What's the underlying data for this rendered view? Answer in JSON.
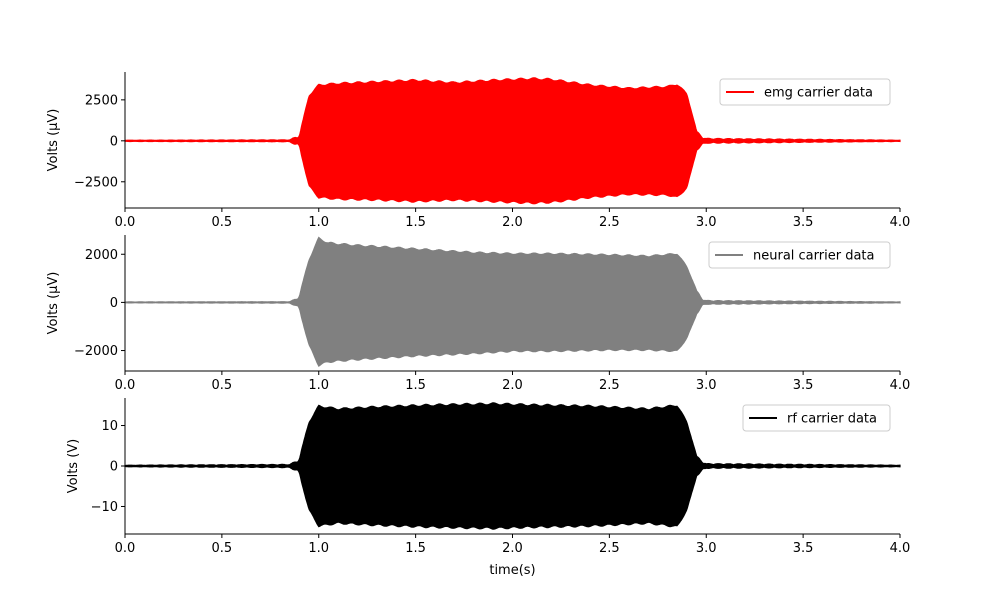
{
  "chart_data": [
    {
      "type": "line",
      "title": "",
      "xlabel": "",
      "ylabel": "Volts (μV)",
      "xlim": [
        0.0,
        4.0
      ],
      "ylim": [
        -4100,
        4200
      ],
      "xticks": [
        0.0,
        0.5,
        1.0,
        1.5,
        2.0,
        2.5,
        3.0,
        3.5,
        4.0
      ],
      "xtick_labels": [
        "0.0",
        "0.5",
        "1.0",
        "1.5",
        "2.0",
        "2.5",
        "3.0",
        "3.5",
        "4.0"
      ],
      "yticks": [
        -2500,
        0,
        2500
      ],
      "ytick_labels": [
        "−2500",
        "0",
        "2500"
      ],
      "legend_position": "top-right",
      "series": [
        {
          "name": "emg carrier data",
          "color": "#ff0000",
          "envelope": {
            "t": [
              0.0,
              0.85,
              0.88,
              0.9,
              0.95,
              1.0,
              1.1,
              1.3,
              1.5,
              1.7,
              1.9,
              2.1,
              2.2,
              2.4,
              2.6,
              2.8,
              2.85,
              2.9,
              2.95,
              2.98,
              3.0,
              4.0
            ],
            "upper": [
              40,
              60,
              250,
              350,
              2800,
              3450,
              3550,
              3650,
              3750,
              3600,
              3750,
              3850,
              3800,
              3450,
              3250,
              3350,
              3500,
              2900,
              600,
              250,
              150,
              40
            ],
            "lower": [
              -40,
              -60,
              -250,
              -350,
              -2800,
              -3500,
              -3600,
              -3650,
              -3750,
              -3650,
              -3750,
              -3850,
              -3800,
              -3500,
              -3300,
              -3350,
              -3500,
              -2900,
              -600,
              -250,
              -150,
              -40
            ]
          }
        }
      ]
    },
    {
      "type": "line",
      "title": "",
      "xlabel": "",
      "ylabel": "Volts (μV)",
      "xlim": [
        0.0,
        4.0
      ],
      "ylim": [
        -2850,
        2800
      ],
      "xticks": [
        0.0,
        0.5,
        1.0,
        1.5,
        2.0,
        2.5,
        3.0,
        3.5,
        4.0
      ],
      "xtick_labels": [
        "0.0",
        "0.5",
        "1.0",
        "1.5",
        "2.0",
        "2.5",
        "3.0",
        "3.5",
        "4.0"
      ],
      "yticks": [
        -2000,
        0,
        2000
      ],
      "ytick_labels": [
        "−2000",
        "0",
        "2000"
      ],
      "legend_position": "top-right",
      "series": [
        {
          "name": "neural carrier data",
          "color": "#808080",
          "envelope": {
            "t": [
              0.0,
              0.85,
              0.88,
              0.9,
              0.95,
              1.0,
              1.05,
              1.2,
              1.5,
              1.8,
              2.0,
              2.2,
              2.5,
              2.7,
              2.85,
              2.9,
              2.95,
              2.98,
              3.0,
              4.0
            ],
            "upper": [
              20,
              30,
              150,
              300,
              1800,
              2700,
              2500,
              2400,
              2250,
              2100,
              2050,
              2050,
              2000,
              1950,
              2050,
              1500,
              500,
              150,
              80,
              20
            ],
            "lower": [
              -20,
              -30,
              -150,
              -300,
              -1800,
              -2650,
              -2500,
              -2400,
              -2250,
              -2150,
              -2050,
              -2050,
              -2000,
              -2000,
              -2050,
              -1500,
              -500,
              -150,
              -80,
              -20
            ]
          }
        }
      ]
    },
    {
      "type": "line",
      "title": "",
      "xlabel": "time(s)",
      "ylabel": "Volts (V)",
      "xlim": [
        0.0,
        4.0
      ],
      "ylim": [
        -16.8,
        16.8
      ],
      "xticks": [
        0.0,
        0.5,
        1.0,
        1.5,
        2.0,
        2.5,
        3.0,
        3.5,
        4.0
      ],
      "xtick_labels": [
        "0.0",
        "0.5",
        "1.0",
        "1.5",
        "2.0",
        "2.5",
        "3.0",
        "3.5",
        "4.0"
      ],
      "yticks": [
        -10,
        0,
        10
      ],
      "ytick_labels": [
        "−10",
        "0",
        "10"
      ],
      "legend_position": "top-right",
      "series": [
        {
          "name": "rf carrier data",
          "color": "#000000",
          "envelope": {
            "t": [
              0.0,
              0.85,
              0.88,
              0.9,
              0.95,
              1.0,
              1.1,
              1.3,
              1.6,
              1.9,
              2.1,
              2.4,
              2.7,
              2.85,
              2.9,
              2.95,
              2.98,
              3.0,
              4.0
            ],
            "upper": [
              0.2,
              0.4,
              1.2,
              2.0,
              11.0,
              15.0,
              14.3,
              14.8,
              15.3,
              15.6,
              15.3,
              15.0,
              14.3,
              15.2,
              11.0,
              2.5,
              1.2,
              0.6,
              0.2
            ],
            "lower": [
              -0.2,
              -0.4,
              -1.2,
              -2.0,
              -11.0,
              -15.0,
              -14.3,
              -14.8,
              -15.3,
              -15.6,
              -15.3,
              -15.0,
              -14.3,
              -15.2,
              -11.0,
              -2.5,
              -1.2,
              -0.6,
              -0.2
            ]
          }
        }
      ]
    }
  ]
}
